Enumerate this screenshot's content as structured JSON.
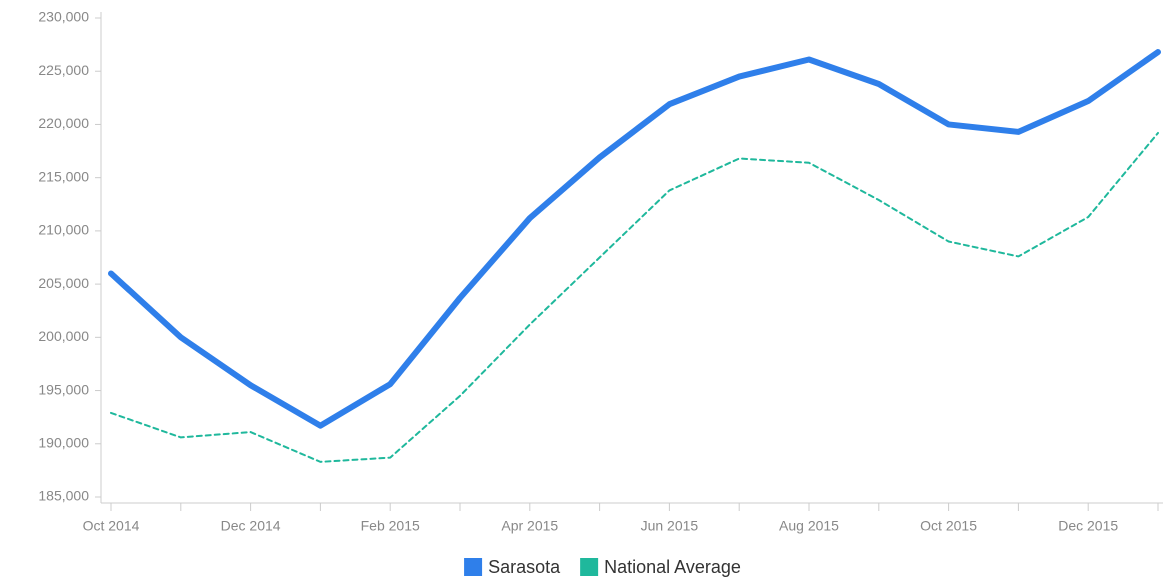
{
  "chart_data": {
    "type": "line",
    "categories": [
      "Oct 2014",
      null,
      "Dec 2014",
      null,
      "Feb 2015",
      null,
      "Apr 2015",
      null,
      "Jun 2015",
      null,
      "Aug 2015",
      null,
      "Oct 2015",
      null,
      "Dec 2015",
      null
    ],
    "series": [
      {
        "name": "Sarasota",
        "color": "#2f7fea",
        "dashed": false,
        "values": [
          206000,
          200000,
          195500,
          191700,
          195600,
          203700,
          211200,
          216900,
          221900,
          224500,
          226100,
          223800,
          220000,
          219300,
          222200,
          226800
        ]
      },
      {
        "name": "National Average",
        "color": "#1fb89c",
        "dashed": true,
        "values": [
          192900,
          190600,
          191100,
          188300,
          188700,
          194500,
          201200,
          207500,
          213800,
          216800,
          216400,
          212900,
          209000,
          207600,
          211300,
          219200
        ]
      }
    ],
    "ylim": [
      185000,
      230000
    ],
    "yticks": [
      {
        "value": 185000,
        "label": "185,000"
      },
      {
        "value": 190000,
        "label": "190,000"
      },
      {
        "value": 195000,
        "label": "195,000"
      },
      {
        "value": 200000,
        "label": "200,000"
      },
      {
        "value": 205000,
        "label": "205,000"
      },
      {
        "value": 210000,
        "label": "210,000"
      },
      {
        "value": 215000,
        "label": "215,000"
      },
      {
        "value": 220000,
        "label": "220,000"
      },
      {
        "value": 225000,
        "label": "225,000"
      },
      {
        "value": 230000,
        "label": "230,000"
      }
    ],
    "grid": false,
    "legend": "bottom"
  }
}
